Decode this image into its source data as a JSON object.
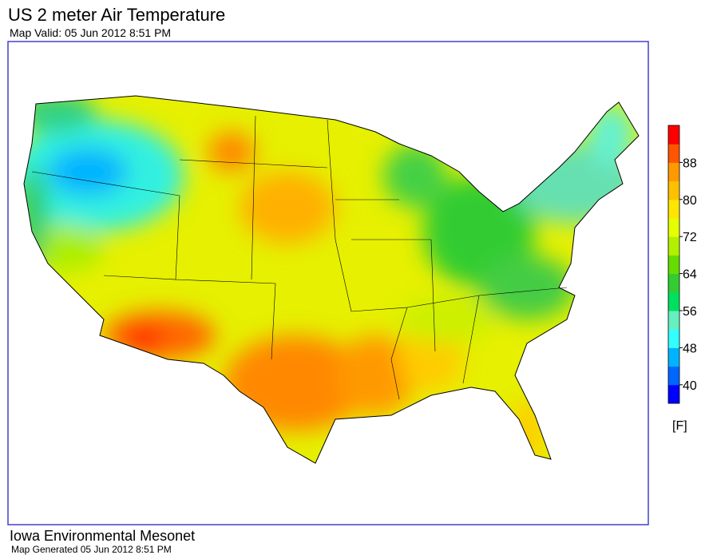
{
  "header": {
    "title": "US 2 meter Air Temperature",
    "subtitle": "Map Valid: 05 Jun 2012 8:51 PM"
  },
  "legend": {
    "range": [
      36,
      96
    ],
    "ticks": [
      40,
      48,
      56,
      64,
      72,
      80,
      88
    ],
    "unit": "[F]",
    "colors": [
      "#0000ff",
      "#0066ff",
      "#00b3ff",
      "#33ffff",
      "#66f0c0",
      "#00e060",
      "#33cc33",
      "#66dd00",
      "#b3f000",
      "#e6ff00",
      "#ffe600",
      "#ffc000",
      "#ff9900",
      "#ff5500",
      "#ff0000"
    ]
  },
  "footer": {
    "organization": "Iowa Environmental Mesonet",
    "generated": "Map Generated 05 Jun 2012 8:51 PM"
  }
}
